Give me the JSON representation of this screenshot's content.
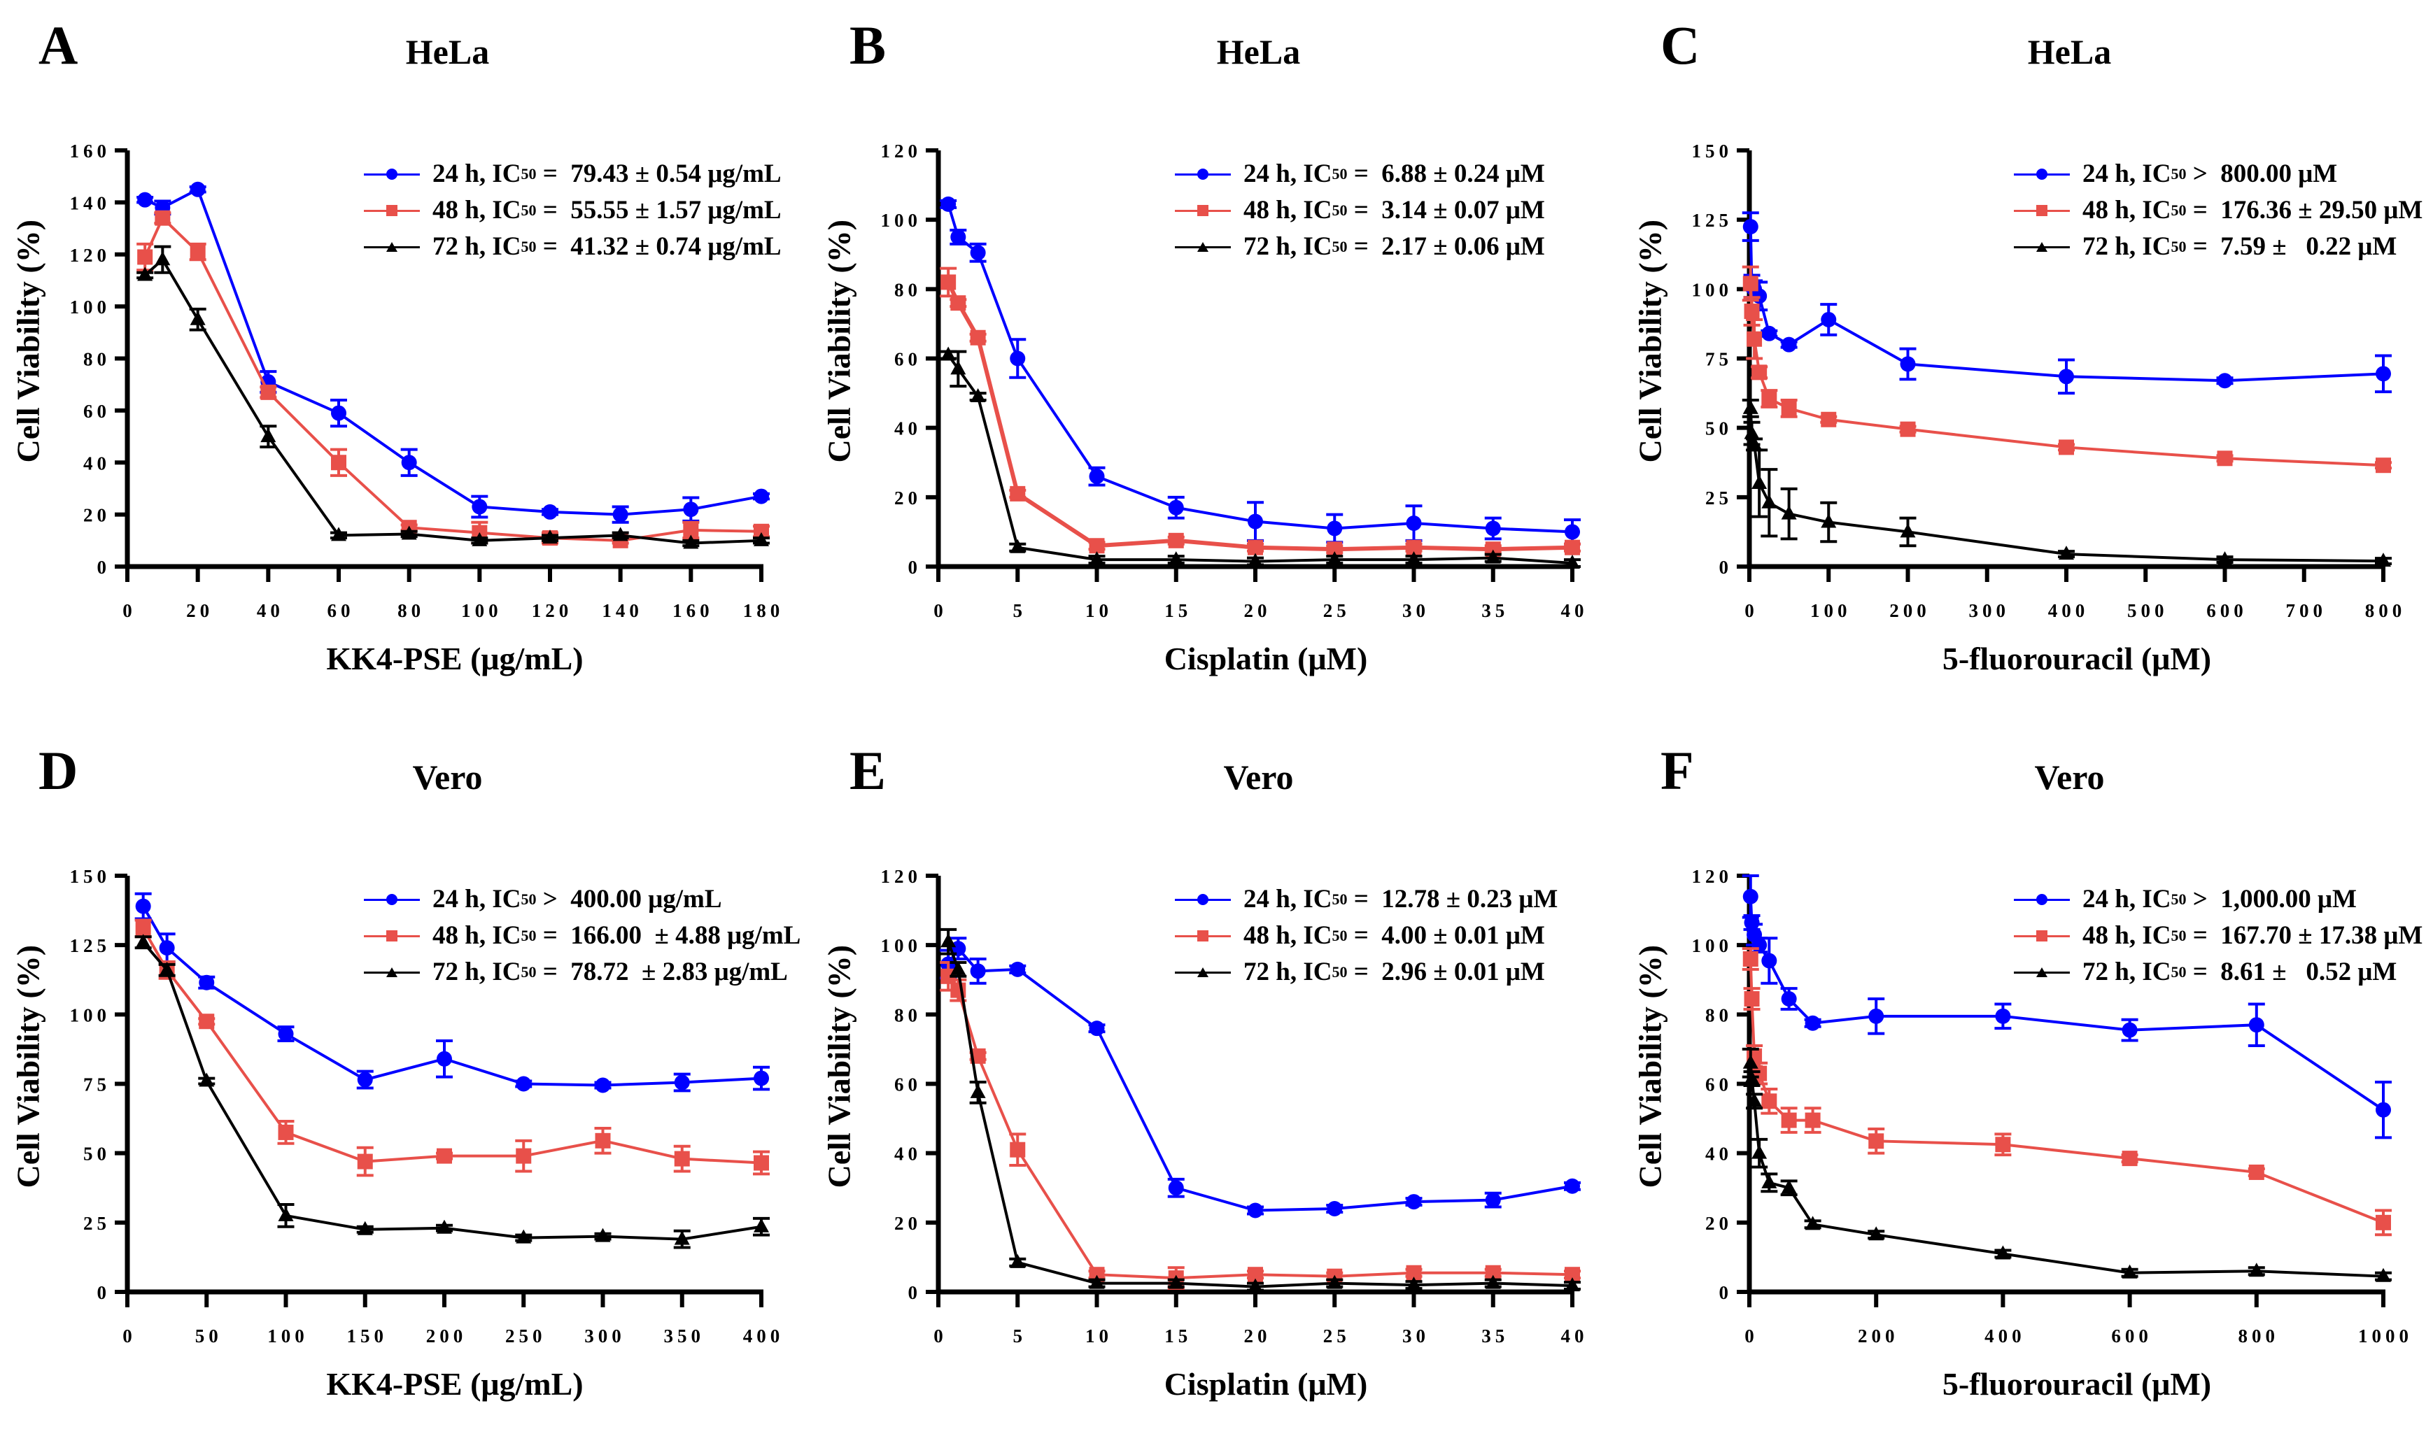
{
  "series_style": {
    "24h": {
      "color": "#0000FF",
      "marker": "circle"
    },
    "48h": {
      "color": "#E8504A",
      "marker": "square"
    },
    "72h": {
      "color": "#000000",
      "marker": "triangle"
    }
  },
  "chart_data": [
    {
      "panel": "A",
      "type": "line",
      "title": "HeLa",
      "xlabel": "KK4-PSE (μg/mL)",
      "ylabel": "Cell Viability (%)",
      "xlim": [
        0,
        180
      ],
      "ylim": [
        0,
        160
      ],
      "xticks": [
        0,
        20,
        40,
        60,
        80,
        100,
        120,
        140,
        160,
        180
      ],
      "yticks": [
        0,
        20,
        40,
        60,
        80,
        100,
        120,
        140,
        160
      ],
      "legend_position": "top-right",
      "x": [
        5,
        10,
        20,
        40,
        60,
        80,
        100,
        120,
        140,
        160,
        180
      ],
      "series": [
        {
          "name": "24 h",
          "legend": {
            "prefix": "24 h, IC",
            "sub": "50",
            "rel": " =  ",
            "value": "79.43 ± 0.54 μg/mL"
          },
          "values": [
            141,
            138,
            145,
            71,
            59,
            40,
            23,
            21,
            20,
            22,
            27
          ],
          "errors": [
            1,
            2.5,
            1,
            4,
            5,
            5,
            4,
            1,
            3,
            4.5,
            1
          ]
        },
        {
          "name": "48 h",
          "legend": {
            "prefix": "48 h, IC",
            "sub": "50",
            "rel": " =  ",
            "value": "55.55 ± 1.57 μg/mL"
          },
          "values": [
            119,
            134,
            121,
            67,
            40,
            15,
            13,
            11,
            10,
            14,
            13.5
          ],
          "errors": [
            5,
            2,
            3,
            2,
            5,
            1,
            4,
            2,
            1,
            3,
            2
          ]
        },
        {
          "name": "72 h",
          "legend": {
            "prefix": "72 h, IC",
            "sub": "50",
            "rel": " =  ",
            "value": "41.32 ± 0.74 μg/mL"
          },
          "values": [
            112,
            118,
            95,
            50,
            12,
            12.5,
            10,
            11,
            12,
            9,
            10
          ],
          "errors": [
            1,
            5,
            4,
            4,
            1,
            1,
            1,
            1,
            1,
            1,
            1
          ]
        }
      ]
    },
    {
      "panel": "B",
      "type": "line",
      "title": "HeLa",
      "xlabel": "Cisplatin (μM)",
      "ylabel": "Cell Viability (%)",
      "xlim": [
        0,
        40
      ],
      "ylim": [
        0,
        120
      ],
      "xticks": [
        0,
        5,
        10,
        15,
        20,
        25,
        30,
        35,
        40
      ],
      "yticks": [
        0,
        20,
        40,
        60,
        80,
        100,
        120
      ],
      "legend_position": "top-right",
      "x": [
        0.625,
        1.25,
        2.5,
        5,
        10,
        15,
        20,
        25,
        30,
        35,
        40
      ],
      "series": [
        {
          "name": "24 h",
          "legend": {
            "prefix": "24 h, IC",
            "sub": "50",
            "rel": " =  ",
            "value": "6.88 ± 0.24 μM"
          },
          "values": [
            104.5,
            95,
            90.5,
            60,
            26,
            17,
            13,
            11,
            12.5,
            11,
            10
          ],
          "errors": [
            1,
            2,
            2.5,
            5.5,
            2.5,
            3,
            5.5,
            4,
            5,
            3,
            3.5
          ]
        },
        {
          "name": "48 h",
          "legend": {
            "prefix": "48 h, IC",
            "sub": "50",
            "rel": " =  ",
            "value": "3.14 ± 0.07 μM"
          },
          "values": [
            82,
            76,
            66,
            21,
            6,
            7.5,
            5.5,
            5,
            5.5,
            5,
            5.5
          ],
          "errors": [
            4,
            1,
            1,
            1,
            1,
            1,
            1,
            1,
            1,
            1,
            1
          ]
        },
        {
          "name": "72 h",
          "legend": {
            "prefix": "72 h, IC",
            "sub": "50",
            "rel": " =  ",
            "value": "2.17 ± 0.06 μM"
          },
          "values": [
            61,
            57,
            49,
            5.5,
            2,
            2,
            1.5,
            2,
            2,
            2.5,
            1
          ],
          "errors": [
            1,
            5,
            1,
            1,
            1,
            1,
            1,
            1,
            1,
            1,
            1
          ]
        }
      ]
    },
    {
      "panel": "C",
      "type": "line",
      "title": "HeLa",
      "xlabel": "5-fluorouracil (μM)",
      "ylabel": "Cell Viability (%)",
      "xlim": [
        0,
        800
      ],
      "ylim": [
        0,
        150
      ],
      "xticks": [
        0,
        100,
        200,
        300,
        400,
        500,
        600,
        700,
        800
      ],
      "yticks": [
        0,
        25,
        50,
        75,
        100,
        125,
        150
      ],
      "legend_position": "top-right",
      "x": [
        1.5625,
        3.125,
        6.25,
        12.5,
        25,
        50,
        100,
        200,
        400,
        600,
        800
      ],
      "series": [
        {
          "name": "24 h",
          "legend": {
            "prefix": "24 h, IC",
            "sub": "50",
            "rel": " >  ",
            "value": "800.00 μM"
          },
          "values": [
            122.5,
            101,
            100,
            97.5,
            84,
            80,
            89,
            73,
            68.5,
            67,
            69.5
          ],
          "errors": [
            5,
            4,
            3,
            5,
            1,
            1,
            5.5,
            5.5,
            6,
            1,
            6.5
          ]
        },
        {
          "name": "48 h",
          "legend": {
            "prefix": "48 h, IC",
            "sub": "50",
            "rel": " =  ",
            "value": "176.36 ± 29.50 μM"
          },
          "values": [
            102,
            92,
            82,
            70,
            60.5,
            57,
            53,
            49.5,
            43,
            39,
            36.5
          ],
          "errors": [
            6,
            5,
            7,
            2,
            3,
            3,
            1,
            1,
            1,
            1,
            1
          ]
        },
        {
          "name": "72 h",
          "legend": {
            "prefix": "72 h, IC",
            "sub": "50",
            "rel": " =  ",
            "value": "7.59 ±   0.22 μM"
          },
          "values": [
            57,
            48,
            44,
            30,
            23,
            19,
            16,
            12.5,
            4.5,
            2.5,
            2
          ],
          "errors": [
            3,
            4,
            2,
            12,
            12,
            9,
            7,
            5,
            1,
            1,
            1
          ]
        }
      ]
    },
    {
      "panel": "D",
      "type": "line",
      "title": "Vero",
      "xlabel": "KK4-PSE (μg/mL)",
      "ylabel": "Cell Viability (%)",
      "xlim": [
        0,
        400
      ],
      "ylim": [
        0,
        150
      ],
      "xticks": [
        0,
        50,
        100,
        150,
        200,
        250,
        300,
        350,
        400
      ],
      "yticks": [
        0,
        25,
        50,
        75,
        100,
        125,
        150
      ],
      "legend_position": "top-right",
      "x": [
        10,
        25,
        50,
        100,
        150,
        200,
        250,
        300,
        350,
        400
      ],
      "series": [
        {
          "name": "24 h",
          "legend": {
            "prefix": "24 h, IC",
            "sub": "50",
            "rel": " >  ",
            "value": "400.00 μg/mL"
          },
          "values": [
            139,
            124,
            111.5,
            93,
            76.5,
            84,
            75,
            74.5,
            75.5,
            77
          ],
          "errors": [
            4.5,
            5,
            2,
            2.5,
            3,
            6.5,
            1,
            1,
            3,
            4
          ]
        },
        {
          "name": "48 h",
          "legend": {
            "prefix": "48 h, IC",
            "sub": "50",
            "rel": " =  ",
            "value": "166.00  ± 4.88 μg/mL"
          },
          "values": [
            131,
            116,
            97.5,
            57.5,
            47,
            49,
            49,
            54.5,
            48,
            46.5
          ],
          "errors": [
            3,
            3,
            1,
            4,
            5,
            1,
            5.5,
            4.5,
            4.5,
            4
          ]
        },
        {
          "name": "72 h",
          "legend": {
            "prefix": "72 h, IC",
            "sub": "50",
            "rel": " =  ",
            "value": "78.72  ± 2.83 μg/mL"
          },
          "values": [
            126,
            116,
            76,
            27.5,
            22.5,
            23,
            19.5,
            20,
            19,
            23.5
          ],
          "errors": [
            2,
            2,
            1,
            4,
            1,
            1,
            1,
            1,
            3,
            3
          ]
        }
      ]
    },
    {
      "panel": "E",
      "type": "line",
      "title": "Vero",
      "xlabel": "Cisplatin (μM)",
      "ylabel": "Cell Viability (%)",
      "xlim": [
        0,
        40
      ],
      "ylim": [
        0,
        120
      ],
      "xticks": [
        0,
        5,
        10,
        15,
        20,
        25,
        30,
        35,
        40
      ],
      "yticks": [
        0,
        20,
        40,
        60,
        80,
        100,
        120
      ],
      "legend_position": "top-right",
      "x": [
        0.625,
        1.25,
        2.5,
        5,
        10,
        15,
        20,
        25,
        30,
        35,
        40
      ],
      "series": [
        {
          "name": "24 h",
          "legend": {
            "prefix": "24 h, IC",
            "sub": "50",
            "rel": " =  ",
            "value": "12.78 ± 0.23 μM"
          },
          "values": [
            94.5,
            99,
            92.5,
            93,
            76,
            30,
            23.5,
            24,
            26,
            26.5,
            30.5
          ],
          "errors": [
            4,
            3,
            3.5,
            1,
            1,
            2.5,
            1,
            1,
            1,
            2,
            1
          ]
        },
        {
          "name": "48 h",
          "legend": {
            "prefix": "48 h, IC",
            "sub": "50",
            "rel": " =  ",
            "value": "4.00 ± 0.01 μM"
          },
          "values": [
            91,
            87,
            68,
            41,
            5,
            4,
            5,
            4.5,
            5.5,
            5.5,
            5
          ],
          "errors": [
            4,
            3,
            1,
            4.5,
            1,
            3,
            1,
            1,
            1,
            1,
            1
          ]
        },
        {
          "name": "72 h",
          "legend": {
            "prefix": "72 h, IC",
            "sub": "50",
            "rel": " =  ",
            "value": "2.96 ± 0.01 μM"
          },
          "values": [
            101,
            93,
            57.5,
            8.5,
            2.5,
            2.5,
            1.5,
            2.5,
            2,
            2.5,
            1.8
          ],
          "errors": [
            3.5,
            2,
            3,
            1,
            1,
            1,
            1,
            1,
            1,
            1,
            1
          ]
        }
      ]
    },
    {
      "panel": "F",
      "type": "line",
      "title": "Vero",
      "xlabel": "5-fluorouracil (μM)",
      "ylabel": "Cell Viability (%)",
      "xlim": [
        0,
        1000
      ],
      "ylim": [
        0,
        120
      ],
      "xticks": [
        0,
        200,
        400,
        600,
        800,
        1000
      ],
      "yticks": [
        0,
        20,
        40,
        60,
        80,
        100,
        120
      ],
      "legend_position": "top-right",
      "x": [
        1.95,
        3.9,
        7.8,
        15.6,
        31.25,
        62.5,
        100,
        200,
        400,
        600,
        800,
        1000
      ],
      "series": [
        {
          "name": "24 h",
          "legend": {
            "prefix": "24 h, IC",
            "sub": "50",
            "rel": " >  ",
            "value": "1,000.00 μM"
          },
          "values": [
            114,
            106.5,
            103,
            100,
            95.5,
            84.5,
            77.5,
            79.5,
            79.5,
            75.5,
            77,
            52.5
          ],
          "errors": [
            6,
            2,
            3,
            2,
            6.5,
            3,
            1,
            5,
            3.5,
            3,
            6,
            8
          ]
        },
        {
          "name": "48 h",
          "legend": {
            "prefix": "48 h, IC",
            "sub": "50",
            "rel": " =  ",
            "value": "167.70 ± 17.38 μM"
          },
          "values": [
            96,
            84.5,
            68,
            63,
            55,
            49.5,
            49.5,
            43.5,
            42.5,
            38.5,
            34.5,
            20
          ],
          "errors": [
            3,
            3,
            3,
            3,
            3.5,
            3.5,
            3.5,
            3.5,
            3,
            1,
            1,
            3.5
          ]
        },
        {
          "name": "72 h",
          "legend": {
            "prefix": "72 h, IC",
            "sub": "50",
            "rel": " =  ",
            "value": "8.61 ±   0.52 μM"
          },
          "values": [
            66,
            61.5,
            55,
            40,
            31.5,
            30,
            19.5,
            16.5,
            11,
            5.5,
            6,
            4.5
          ],
          "errors": [
            4,
            2,
            2,
            4,
            2.5,
            2,
            1,
            1,
            1,
            1,
            1,
            1
          ]
        }
      ]
    }
  ]
}
